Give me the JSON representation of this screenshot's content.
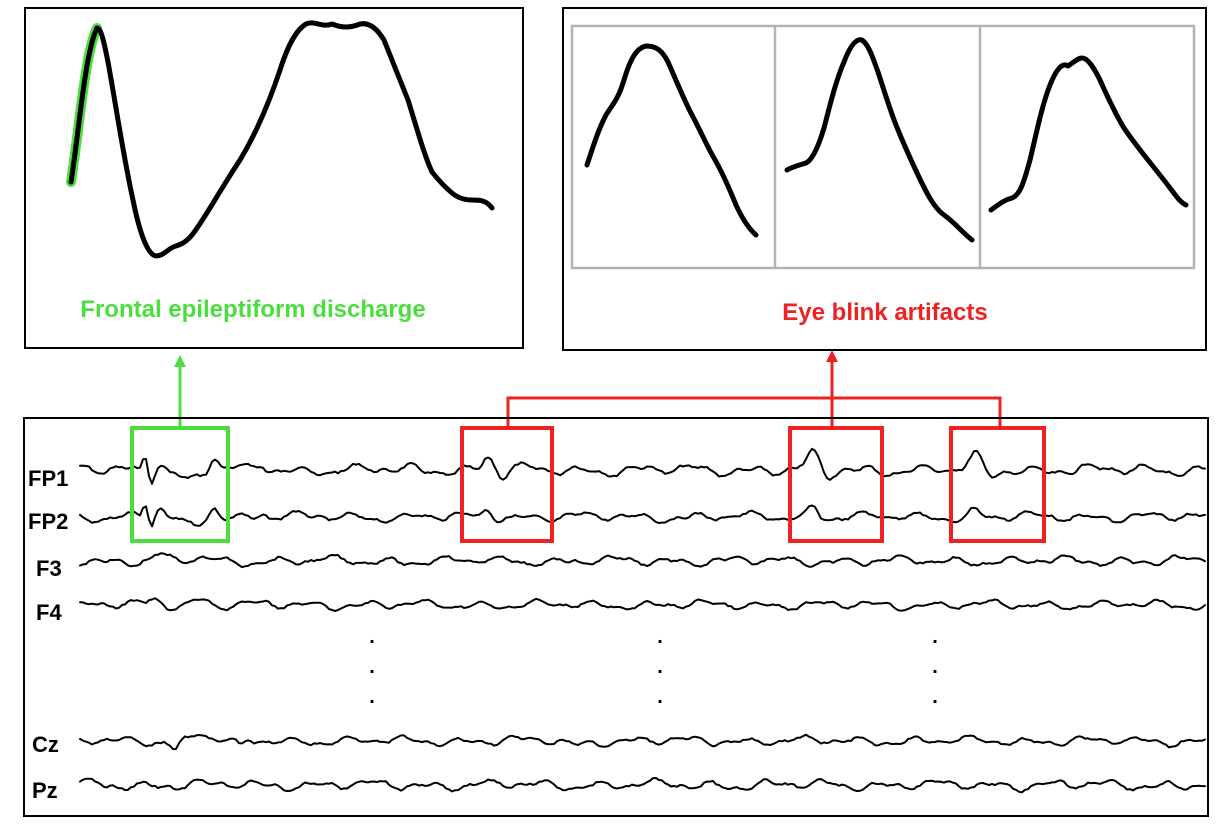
{
  "colors": {
    "discharge": "#4ddd3f",
    "artifact": "#ee2222",
    "panel_border": "#000000",
    "subpanel_border": "#b3b3b3"
  },
  "panels": {
    "discharge_caption": "Frontal epileptiform discharge",
    "artifact_caption": "Eye blink artifacts"
  },
  "channels": [
    "FP1",
    "FP2",
    "F3",
    "F4",
    "Cz",
    "Pz"
  ],
  "ellipsis_marks": [
    ".",
    ".",
    "."
  ]
}
